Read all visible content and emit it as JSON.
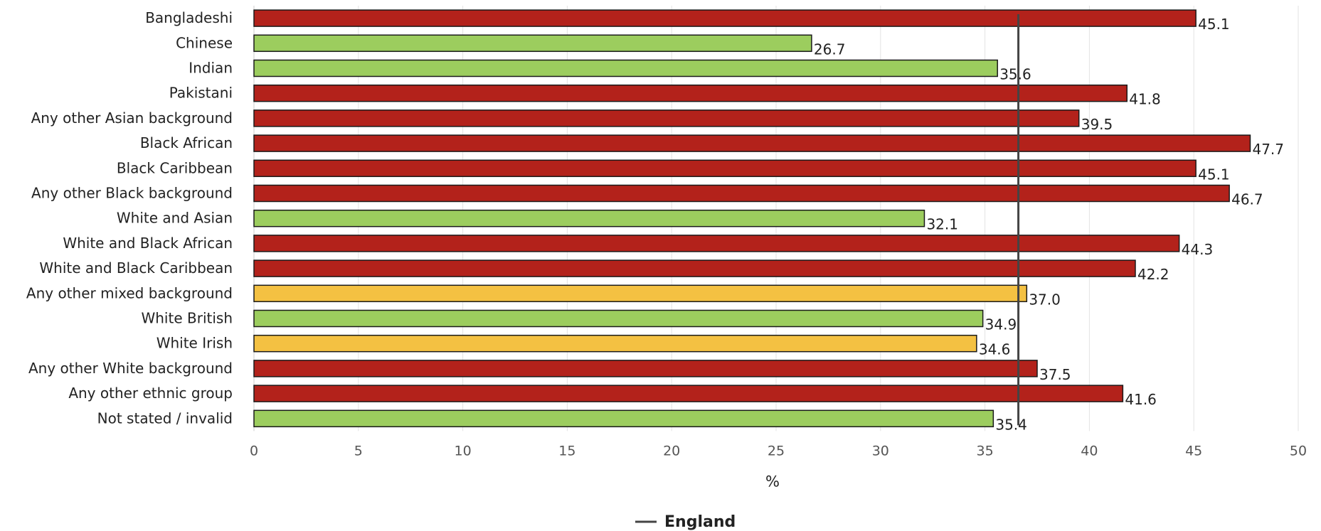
{
  "chart_data": {
    "type": "bar",
    "orientation": "horizontal",
    "categories": [
      "Bangladeshi",
      "Chinese",
      "Indian",
      "Pakistani",
      "Any other Asian background",
      "Black African",
      "Black Caribbean",
      "Any other Black background",
      "White and Asian",
      "White and Black African",
      "White and Black Caribbean",
      "Any other mixed background",
      "White British",
      "White Irish",
      "Any other White background",
      "Any other ethnic group",
      "Not stated / invalid"
    ],
    "values": [
      45.1,
      26.7,
      35.6,
      41.8,
      39.5,
      47.7,
      45.1,
      46.7,
      32.1,
      44.3,
      42.2,
      37.0,
      34.9,
      34.6,
      37.5,
      41.6,
      35.4
    ],
    "value_labels": [
      "45.1",
      "26.7",
      "35.6",
      "41.8",
      "39.5",
      "47.7",
      "45.1",
      "46.7",
      "32.1",
      "44.3",
      "42.2",
      "37.0",
      "34.9",
      "34.6",
      "37.5",
      "41.6",
      "35.4"
    ],
    "bar_colors": [
      "red",
      "green",
      "green",
      "red",
      "red",
      "red",
      "red",
      "red",
      "green",
      "red",
      "red",
      "amber",
      "green",
      "amber",
      "red",
      "red",
      "green"
    ],
    "palette": {
      "red": "#b3221b",
      "green": "#9ccd5e",
      "amber": "#f4c142"
    },
    "reference_line": {
      "name": "England",
      "value": 36.6,
      "color": "#444444"
    },
    "xlim": [
      0,
      50
    ],
    "xticks": [
      "0",
      "5",
      "10",
      "15",
      "20",
      "25",
      "30",
      "35",
      "40",
      "45",
      "50"
    ],
    "xlabel": "%",
    "grid": true,
    "legend_position": "bottom-center"
  }
}
